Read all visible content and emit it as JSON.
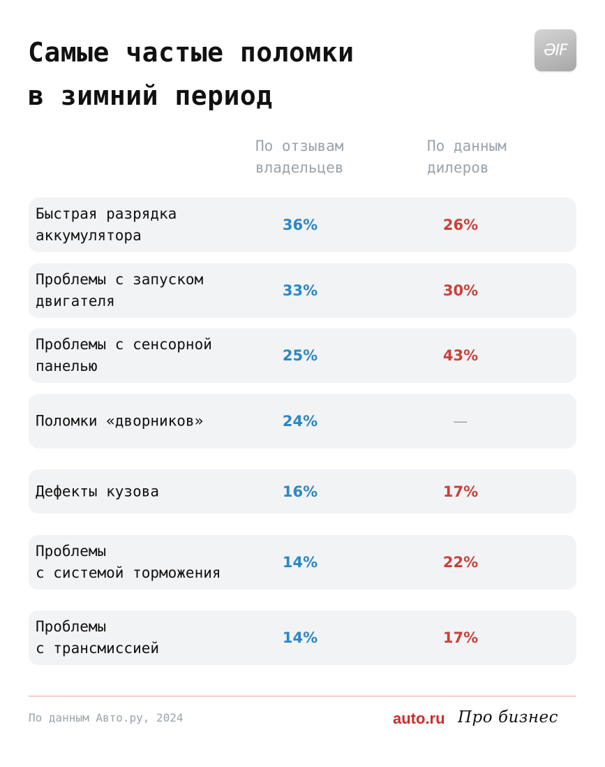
{
  "title": "Самые частые поломки\nв зимний период",
  "logo_text": "ƏIF",
  "columns": {
    "owners": "По отзывам\nвладельцев",
    "dealers": "По данным\nдилеров"
  },
  "chart_data": {
    "type": "table",
    "title": "Самые частые поломки в зимний период",
    "columns": [
      "По отзывам владельцев",
      "По данным дилеров"
    ],
    "rows": [
      {
        "label": "Быстрая разрядка\nаккумулятора",
        "owners": "36%",
        "dealers": "26%"
      },
      {
        "label": "Проблемы с запуском\nдвигателя",
        "owners": "33%",
        "dealers": "30%"
      },
      {
        "label": "Проблемы с сенсорной\nпанелью",
        "owners": "25%",
        "dealers": "43%"
      },
      {
        "label": "Поломки «дворников»",
        "owners": "24%",
        "dealers": "—"
      },
      {
        "label": "Дефекты кузова",
        "owners": "16%",
        "dealers": "17%"
      },
      {
        "label": "Проблемы\nс системой торможения",
        "owners": "14%",
        "dealers": "22%"
      },
      {
        "label": "Проблемы\nс трансмиссией",
        "owners": "14%",
        "dealers": "17%"
      }
    ]
  },
  "colors": {
    "owners": "#2b87c4",
    "dealers": "#c8413a",
    "row_bg": "#f2f3f5",
    "divider": "#e8a3a3",
    "muted": "#9aa3ab",
    "brand": "#d12a2a"
  },
  "footer": {
    "source": "По данным Авто.ру, 2024",
    "brand_auto": "auto.ru",
    "brand_pro": "Про бизнес"
  }
}
